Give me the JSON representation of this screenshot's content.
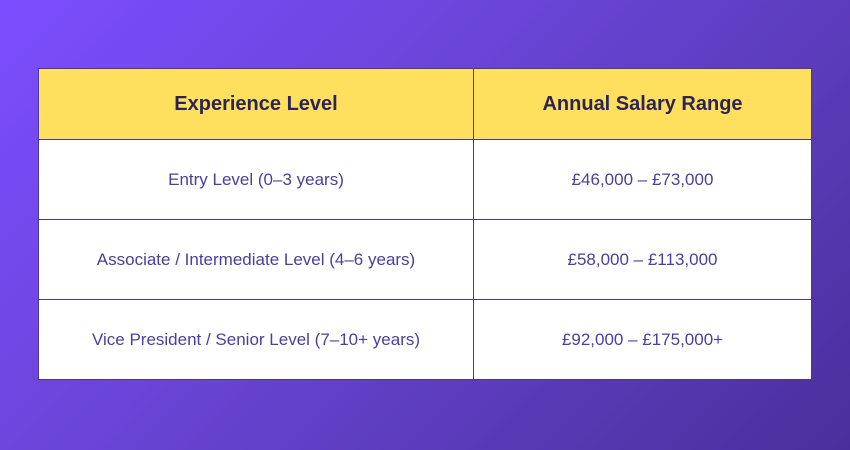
{
  "table": {
    "headers": [
      "Experience Level",
      "Annual Salary Range"
    ],
    "rows": [
      {
        "level": "Entry Level (0–3 years)",
        "salary": "£46,000 – £73,000"
      },
      {
        "level": "Associate / Intermediate Level (4–6 years)",
        "salary": "£58,000 – £113,000"
      },
      {
        "level": "Vice President / Senior Level (7–10+ years)",
        "salary": "£92,000 – £175,000+"
      }
    ]
  },
  "colors": {
    "header_background": "#ffdf5e",
    "header_text": "#2c2456",
    "cell_background": "#ffffff",
    "cell_text": "#4d3d9e",
    "border": "#4a3a8f",
    "page_gradient_start": "#7c4dff",
    "page_gradient_end": "#4a2f9c"
  }
}
